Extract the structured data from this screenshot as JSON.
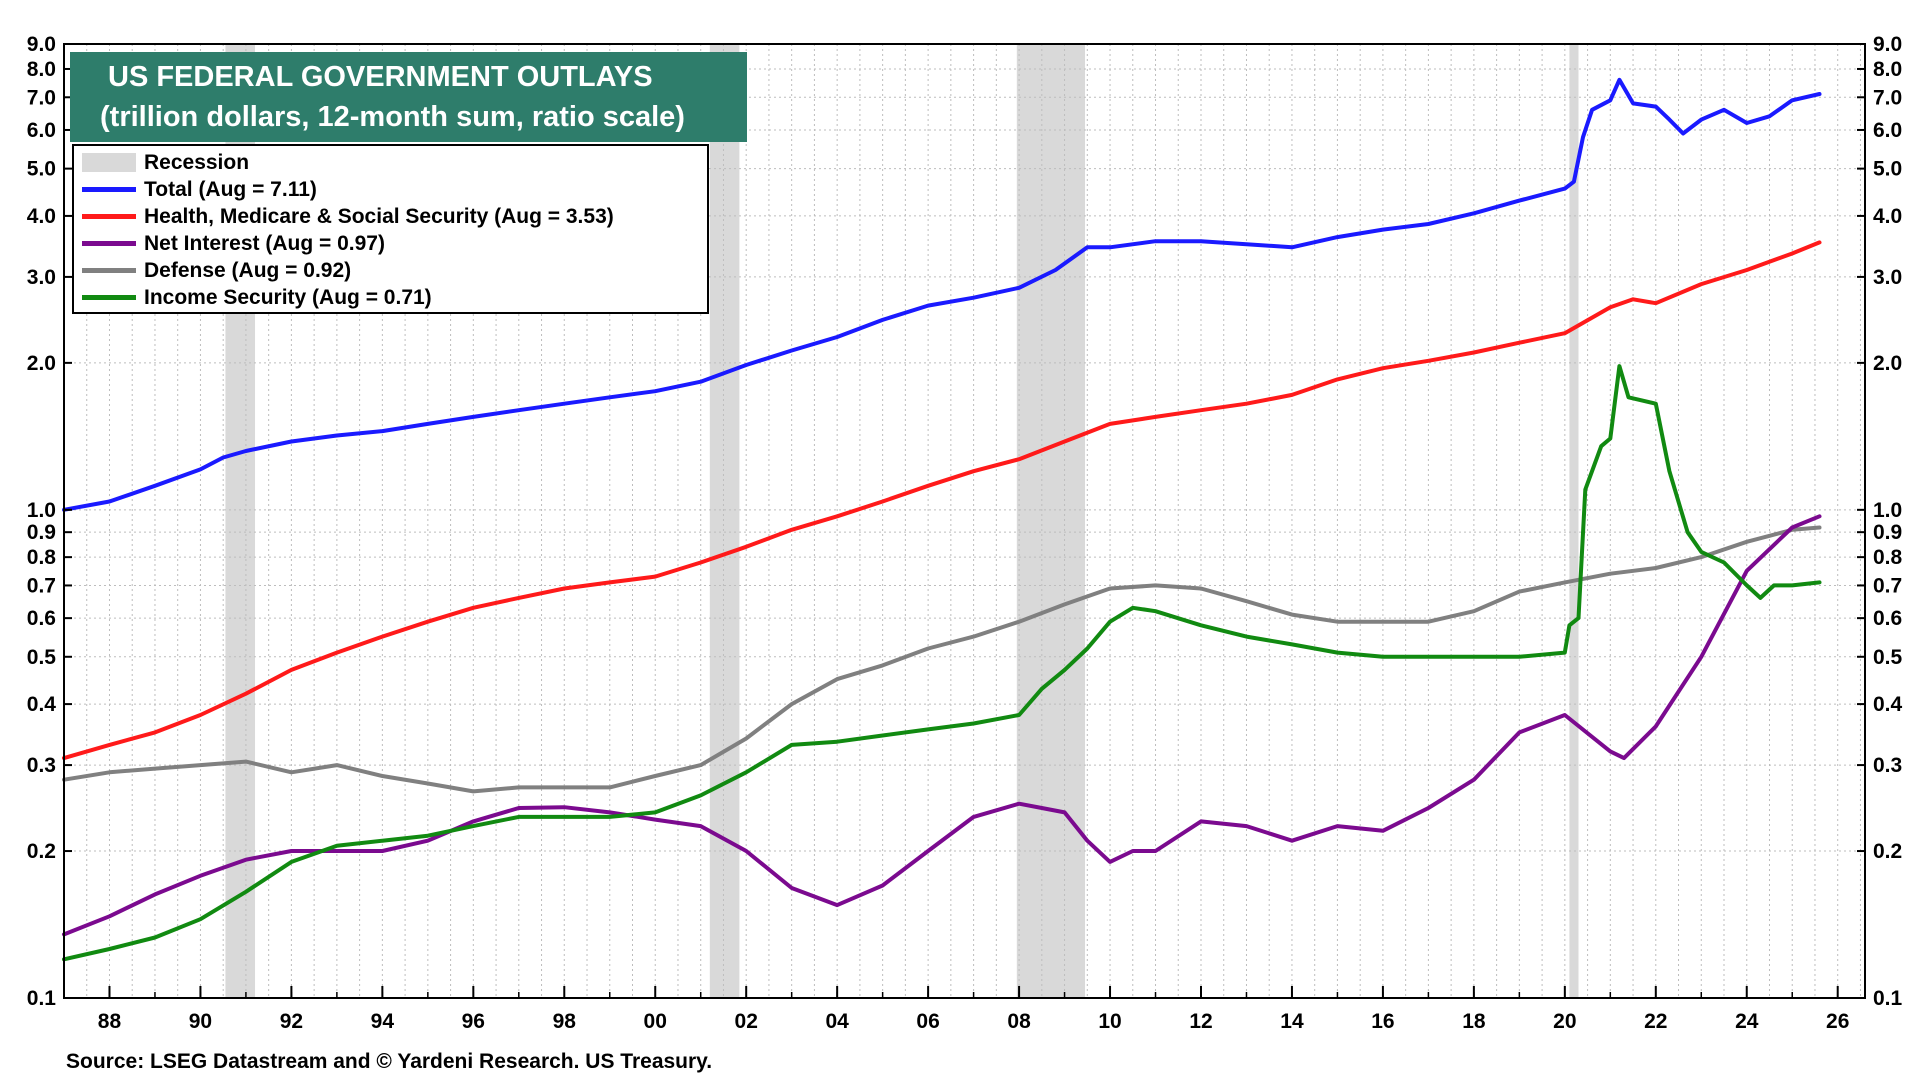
{
  "chart_data": {
    "type": "line",
    "title": "US FEDERAL GOVERNMENT OUTLAYS",
    "subtitle": "(trillion dollars, 12-month sum, ratio scale)",
    "source": "Source: LSEG Datastream and © Yardeni Research. US Treasury.",
    "y_scale": "log",
    "ylim": [
      0.1,
      9.0
    ],
    "xlim": [
      1987.0,
      2026.6
    ],
    "y_ticks": [
      {
        "v": 0.1,
        "label": "0.1"
      },
      {
        "v": 0.2,
        "label": "0.2"
      },
      {
        "v": 0.3,
        "label": "0.3"
      },
      {
        "v": 0.4,
        "label": "0.4"
      },
      {
        "v": 0.5,
        "label": "0.5"
      },
      {
        "v": 0.6,
        "label": "0.6"
      },
      {
        "v": 0.7,
        "label": "0.7"
      },
      {
        "v": 0.8,
        "label": "0.8"
      },
      {
        "v": 0.9,
        "label": "0.9"
      },
      {
        "v": 1.0,
        "label": "1.0"
      },
      {
        "v": 2.0,
        "label": "2.0"
      },
      {
        "v": 3.0,
        "label": "3.0"
      },
      {
        "v": 4.0,
        "label": "4.0"
      },
      {
        "v": 5.0,
        "label": "5.0"
      },
      {
        "v": 6.0,
        "label": "6.0"
      },
      {
        "v": 7.0,
        "label": "7.0"
      },
      {
        "v": 8.0,
        "label": "8.0"
      },
      {
        "v": 9.0,
        "label": "9.0"
      }
    ],
    "x_ticks": [
      {
        "v": 1988,
        "label": "88"
      },
      {
        "v": 1990,
        "label": "90"
      },
      {
        "v": 1992,
        "label": "92"
      },
      {
        "v": 1994,
        "label": "94"
      },
      {
        "v": 1996,
        "label": "96"
      },
      {
        "v": 1998,
        "label": "98"
      },
      {
        "v": 2000,
        "label": "00"
      },
      {
        "v": 2002,
        "label": "02"
      },
      {
        "v": 2004,
        "label": "04"
      },
      {
        "v": 2006,
        "label": "06"
      },
      {
        "v": 2008,
        "label": "08"
      },
      {
        "v": 2010,
        "label": "10"
      },
      {
        "v": 2012,
        "label": "12"
      },
      {
        "v": 2014,
        "label": "14"
      },
      {
        "v": 2016,
        "label": "16"
      },
      {
        "v": 2018,
        "label": "18"
      },
      {
        "v": 2020,
        "label": "20"
      },
      {
        "v": 2022,
        "label": "22"
      },
      {
        "v": 2024,
        "label": "24"
      },
      {
        "v": 2026,
        "label": "26"
      }
    ],
    "grid": true,
    "legend_position": "top-left",
    "recession_label": "Recession",
    "recession_color": "#d9d9d9",
    "recessions": [
      [
        1990.55,
        1991.2
      ],
      [
        2001.2,
        2001.85
      ],
      [
        2007.95,
        2009.45
      ],
      [
        2020.1,
        2020.3
      ]
    ],
    "series": [
      {
        "name": "Total  (Aug = 7.11)",
        "color": "#1a1aff",
        "points": [
          [
            1987.0,
            1.0
          ],
          [
            1988.0,
            1.04
          ],
          [
            1989.0,
            1.12
          ],
          [
            1990.0,
            1.21
          ],
          [
            1990.5,
            1.28
          ],
          [
            1991.0,
            1.32
          ],
          [
            1992.0,
            1.38
          ],
          [
            1993.0,
            1.42
          ],
          [
            1994.0,
            1.45
          ],
          [
            1995.0,
            1.5
          ],
          [
            1996.0,
            1.55
          ],
          [
            1997.0,
            1.6
          ],
          [
            1998.0,
            1.65
          ],
          [
            1999.0,
            1.7
          ],
          [
            2000.0,
            1.75
          ],
          [
            2001.0,
            1.83
          ],
          [
            2002.0,
            1.98
          ],
          [
            2003.0,
            2.12
          ],
          [
            2004.0,
            2.26
          ],
          [
            2005.0,
            2.45
          ],
          [
            2006.0,
            2.62
          ],
          [
            2007.0,
            2.72
          ],
          [
            2008.0,
            2.85
          ],
          [
            2008.8,
            3.1
          ],
          [
            2009.5,
            3.45
          ],
          [
            2010.0,
            3.45
          ],
          [
            2011.0,
            3.55
          ],
          [
            2012.0,
            3.55
          ],
          [
            2013.0,
            3.5
          ],
          [
            2014.0,
            3.45
          ],
          [
            2015.0,
            3.62
          ],
          [
            2016.0,
            3.75
          ],
          [
            2017.0,
            3.85
          ],
          [
            2018.0,
            4.05
          ],
          [
            2019.0,
            4.3
          ],
          [
            2020.0,
            4.55
          ],
          [
            2020.2,
            4.7
          ],
          [
            2020.4,
            5.8
          ],
          [
            2020.6,
            6.6
          ],
          [
            2021.0,
            6.9
          ],
          [
            2021.2,
            7.6
          ],
          [
            2021.5,
            6.8
          ],
          [
            2022.0,
            6.7
          ],
          [
            2022.3,
            6.3
          ],
          [
            2022.6,
            5.9
          ],
          [
            2023.0,
            6.3
          ],
          [
            2023.5,
            6.6
          ],
          [
            2024.0,
            6.2
          ],
          [
            2024.5,
            6.4
          ],
          [
            2025.0,
            6.9
          ],
          [
            2025.6,
            7.11
          ]
        ]
      },
      {
        "name": "Health, Medicare & Social Security  (Aug = 3.53)",
        "color": "#ff1a1a",
        "points": [
          [
            1987.0,
            0.31
          ],
          [
            1988.0,
            0.33
          ],
          [
            1989.0,
            0.35
          ],
          [
            1990.0,
            0.38
          ],
          [
            1991.0,
            0.42
          ],
          [
            1992.0,
            0.47
          ],
          [
            1993.0,
            0.51
          ],
          [
            1994.0,
            0.55
          ],
          [
            1995.0,
            0.59
          ],
          [
            1996.0,
            0.63
          ],
          [
            1997.0,
            0.66
          ],
          [
            1998.0,
            0.69
          ],
          [
            1999.0,
            0.71
          ],
          [
            2000.0,
            0.73
          ],
          [
            2001.0,
            0.78
          ],
          [
            2002.0,
            0.84
          ],
          [
            2003.0,
            0.91
          ],
          [
            2004.0,
            0.97
          ],
          [
            2005.0,
            1.04
          ],
          [
            2006.0,
            1.12
          ],
          [
            2007.0,
            1.2
          ],
          [
            2008.0,
            1.27
          ],
          [
            2009.0,
            1.38
          ],
          [
            2010.0,
            1.5
          ],
          [
            2011.0,
            1.55
          ],
          [
            2012.0,
            1.6
          ],
          [
            2013.0,
            1.65
          ],
          [
            2014.0,
            1.72
          ],
          [
            2015.0,
            1.85
          ],
          [
            2016.0,
            1.95
          ],
          [
            2017.0,
            2.02
          ],
          [
            2018.0,
            2.1
          ],
          [
            2019.0,
            2.2
          ],
          [
            2020.0,
            2.3
          ],
          [
            2021.0,
            2.6
          ],
          [
            2021.5,
            2.7
          ],
          [
            2022.0,
            2.65
          ],
          [
            2023.0,
            2.9
          ],
          [
            2024.0,
            3.1
          ],
          [
            2025.0,
            3.35
          ],
          [
            2025.6,
            3.53
          ]
        ]
      },
      {
        "name": "Net Interest (Aug = 0.97)",
        "color": "#7b0a8f",
        "points": [
          [
            1987.0,
            0.135
          ],
          [
            1988.0,
            0.147
          ],
          [
            1989.0,
            0.163
          ],
          [
            1990.0,
            0.178
          ],
          [
            1991.0,
            0.192
          ],
          [
            1992.0,
            0.2
          ],
          [
            1993.0,
            0.2
          ],
          [
            1994.0,
            0.2
          ],
          [
            1995.0,
            0.21
          ],
          [
            1996.0,
            0.23
          ],
          [
            1997.0,
            0.245
          ],
          [
            1998.0,
            0.246
          ],
          [
            1999.0,
            0.24
          ],
          [
            2000.0,
            0.232
          ],
          [
            2001.0,
            0.225
          ],
          [
            2002.0,
            0.2
          ],
          [
            2003.0,
            0.168
          ],
          [
            2004.0,
            0.155
          ],
          [
            2005.0,
            0.17
          ],
          [
            2006.0,
            0.2
          ],
          [
            2007.0,
            0.235
          ],
          [
            2008.0,
            0.25
          ],
          [
            2008.5,
            0.245
          ],
          [
            2009.0,
            0.24
          ],
          [
            2009.5,
            0.21
          ],
          [
            2010.0,
            0.19
          ],
          [
            2010.5,
            0.2
          ],
          [
            2011.0,
            0.2
          ],
          [
            2012.0,
            0.23
          ],
          [
            2013.0,
            0.225
          ],
          [
            2014.0,
            0.21
          ],
          [
            2015.0,
            0.225
          ],
          [
            2016.0,
            0.22
          ],
          [
            2017.0,
            0.245
          ],
          [
            2018.0,
            0.28
          ],
          [
            2019.0,
            0.35
          ],
          [
            2020.0,
            0.38
          ],
          [
            2021.0,
            0.32
          ],
          [
            2021.3,
            0.31
          ],
          [
            2022.0,
            0.36
          ],
          [
            2023.0,
            0.5
          ],
          [
            2024.0,
            0.75
          ],
          [
            2025.0,
            0.92
          ],
          [
            2025.6,
            0.97
          ]
        ]
      },
      {
        "name": "Defense (Aug = 0.92)",
        "color": "#808080",
        "points": [
          [
            1987.0,
            0.28
          ],
          [
            1988.0,
            0.29
          ],
          [
            1989.0,
            0.295
          ],
          [
            1990.0,
            0.3
          ],
          [
            1991.0,
            0.305
          ],
          [
            1992.0,
            0.29
          ],
          [
            1993.0,
            0.3
          ],
          [
            1994.0,
            0.285
          ],
          [
            1995.0,
            0.275
          ],
          [
            1996.0,
            0.265
          ],
          [
            1997.0,
            0.27
          ],
          [
            1998.0,
            0.27
          ],
          [
            1999.0,
            0.27
          ],
          [
            2000.0,
            0.285
          ],
          [
            2001.0,
            0.3
          ],
          [
            2002.0,
            0.34
          ],
          [
            2003.0,
            0.4
          ],
          [
            2004.0,
            0.45
          ],
          [
            2005.0,
            0.48
          ],
          [
            2006.0,
            0.52
          ],
          [
            2007.0,
            0.55
          ],
          [
            2008.0,
            0.59
          ],
          [
            2009.0,
            0.64
          ],
          [
            2010.0,
            0.69
          ],
          [
            2011.0,
            0.7
          ],
          [
            2012.0,
            0.69
          ],
          [
            2013.0,
            0.65
          ],
          [
            2014.0,
            0.61
          ],
          [
            2015.0,
            0.59
          ],
          [
            2016.0,
            0.59
          ],
          [
            2017.0,
            0.59
          ],
          [
            2018.0,
            0.62
          ],
          [
            2019.0,
            0.68
          ],
          [
            2020.0,
            0.71
          ],
          [
            2021.0,
            0.74
          ],
          [
            2022.0,
            0.76
          ],
          [
            2023.0,
            0.8
          ],
          [
            2024.0,
            0.86
          ],
          [
            2025.0,
            0.91
          ],
          [
            2025.6,
            0.92
          ]
        ]
      },
      {
        "name": "Income Security (Aug = 0.71)",
        "color": "#118a11",
        "points": [
          [
            1987.0,
            0.12
          ],
          [
            1988.0,
            0.126
          ],
          [
            1989.0,
            0.133
          ],
          [
            1990.0,
            0.145
          ],
          [
            1991.0,
            0.165
          ],
          [
            1992.0,
            0.19
          ],
          [
            1993.0,
            0.205
          ],
          [
            1994.0,
            0.21
          ],
          [
            1995.0,
            0.215
          ],
          [
            1996.0,
            0.225
          ],
          [
            1997.0,
            0.235
          ],
          [
            1998.0,
            0.235
          ],
          [
            1999.0,
            0.235
          ],
          [
            2000.0,
            0.24
          ],
          [
            2001.0,
            0.26
          ],
          [
            2002.0,
            0.29
          ],
          [
            2003.0,
            0.33
          ],
          [
            2004.0,
            0.335
          ],
          [
            2005.0,
            0.345
          ],
          [
            2006.0,
            0.355
          ],
          [
            2007.0,
            0.365
          ],
          [
            2008.0,
            0.38
          ],
          [
            2008.5,
            0.43
          ],
          [
            2009.0,
            0.47
          ],
          [
            2009.5,
            0.52
          ],
          [
            2010.0,
            0.59
          ],
          [
            2010.5,
            0.63
          ],
          [
            2011.0,
            0.62
          ],
          [
            2012.0,
            0.58
          ],
          [
            2013.0,
            0.55
          ],
          [
            2014.0,
            0.53
          ],
          [
            2015.0,
            0.51
          ],
          [
            2016.0,
            0.5
          ],
          [
            2017.0,
            0.5
          ],
          [
            2018.0,
            0.5
          ],
          [
            2019.0,
            0.5
          ],
          [
            2020.0,
            0.51
          ],
          [
            2020.1,
            0.58
          ],
          [
            2020.3,
            0.6
          ],
          [
            2020.45,
            1.1
          ],
          [
            2020.8,
            1.35
          ],
          [
            2021.0,
            1.4
          ],
          [
            2021.2,
            1.97
          ],
          [
            2021.4,
            1.7
          ],
          [
            2022.0,
            1.65
          ],
          [
            2022.3,
            1.2
          ],
          [
            2022.7,
            0.9
          ],
          [
            2023.0,
            0.82
          ],
          [
            2023.5,
            0.78
          ],
          [
            2024.0,
            0.7
          ],
          [
            2024.3,
            0.66
          ],
          [
            2024.6,
            0.7
          ],
          [
            2025.0,
            0.7
          ],
          [
            2025.6,
            0.71
          ]
        ]
      }
    ]
  }
}
